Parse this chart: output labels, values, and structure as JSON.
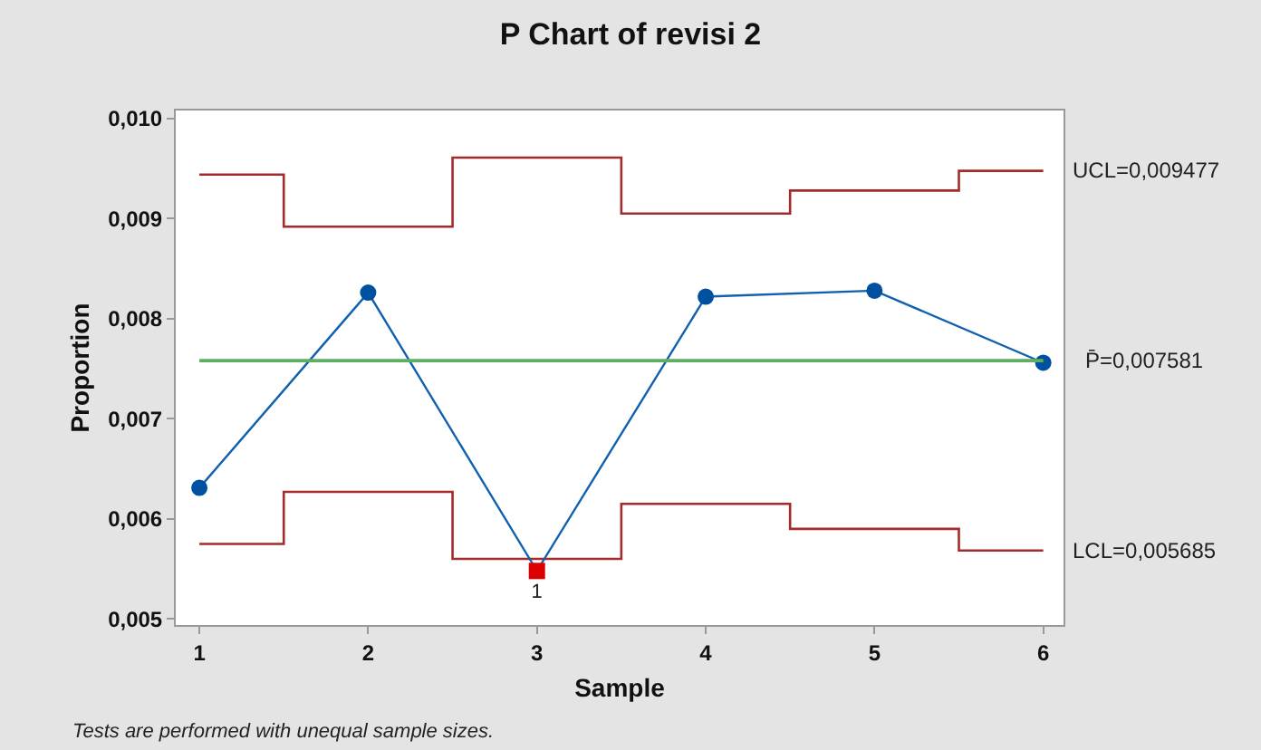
{
  "chart_data": {
    "type": "line",
    "title": "P Chart of revisi 2",
    "xlabel": "Sample",
    "ylabel": "Proportion",
    "x": [
      1,
      2,
      3,
      4,
      5,
      6
    ],
    "series": [
      {
        "type": "step",
        "name": "UCL=0,009477",
        "color": "#a52a2a",
        "values": [
          0.00944,
          0.00892,
          0.00961,
          0.00905,
          0.00928,
          0.009477
        ]
      },
      {
        "type": "step",
        "name": "LCL=0,005685",
        "color": "#a52a2a",
        "values": [
          0.00575,
          0.00627,
          0.0056,
          0.00615,
          0.0059,
          0.005685
        ]
      },
      {
        "color": "#1060b0",
        "marker": "none",
        "values": [
          0.00631,
          0.00826,
          0.00548,
          0.00822,
          0.00828,
          0.00756
        ]
      },
      {
        "type": "scatter",
        "color": "#0050a0",
        "marker": "circle",
        "values": [
          0.00631,
          0.00826,
          null,
          0.00822,
          0.00828,
          0.00756
        ]
      },
      {
        "type": "scatter",
        "name": "1",
        "color": "#dd0000",
        "marker": "square",
        "values": [
          null,
          null,
          0.00548,
          null,
          null,
          null
        ]
      }
    ],
    "ref_lines": [
      {
        "axis": "y",
        "value": 0.007581,
        "label": "P̄=0,007581",
        "color": "#5cb060"
      }
    ],
    "annotations": [
      "Tests are performed with unequal sample sizes."
    ],
    "xlim": [
      0.86,
      6.12
    ],
    "xticks": [
      1,
      2,
      3,
      4,
      5,
      6
    ],
    "ylim": [
      0.00494,
      0.01008
    ],
    "yticks": [
      {
        "value": 0.005,
        "label": "0,005"
      },
      {
        "value": 0.006,
        "label": "0,006"
      },
      {
        "value": 0.007,
        "label": "0,007"
      },
      {
        "value": 0.008,
        "label": "0,008"
      },
      {
        "value": 0.009,
        "label": "0,009"
      },
      {
        "value": 0.01,
        "label": "0,010"
      }
    ],
    "tick_labels": "xy"
  }
}
